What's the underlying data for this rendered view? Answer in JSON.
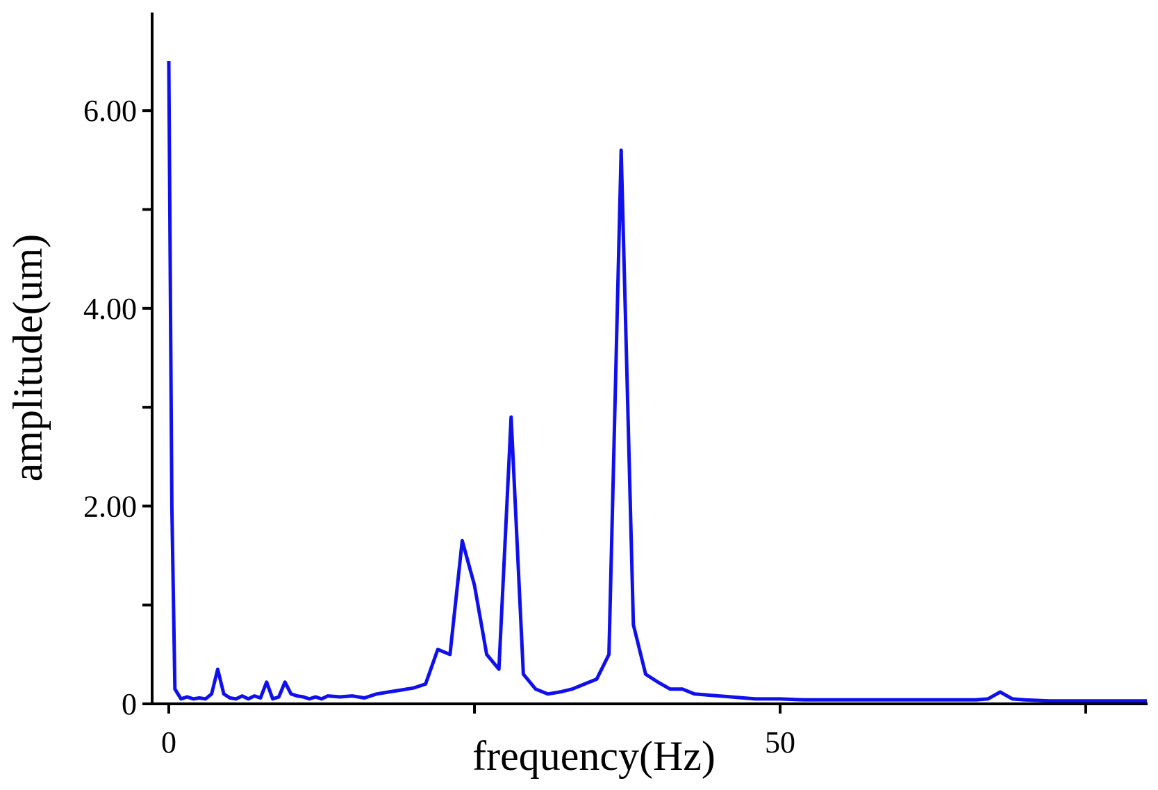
{
  "chart_data": {
    "type": "line",
    "xlabel": "frequency(Hz)",
    "ylabel": "amplitude(um)",
    "xlim": [
      -0.3,
      80.0
    ],
    "ylim": [
      0,
      7.0
    ],
    "xticks": [
      0,
      25,
      50,
      75
    ],
    "xtick_labels": [
      "0",
      "",
      "50",
      ""
    ],
    "yticks": [
      0,
      1,
      2,
      3,
      4,
      5,
      6
    ],
    "ytick_labels": [
      "0",
      "",
      "2.00",
      "",
      "4.00",
      "",
      "6.00"
    ],
    "grid": false,
    "line_color": "#1010ee",
    "series": [
      {
        "x": [
          0,
          0.25,
          0.5,
          1,
          1.5,
          2,
          2.5,
          3,
          3.5,
          4,
          4.5,
          5,
          5.5,
          6,
          6.5,
          7,
          7.5,
          8,
          8.5,
          9,
          9.5,
          10,
          10.5,
          11,
          11.5,
          12,
          12.5,
          13,
          14,
          15,
          16,
          17,
          18,
          19,
          20,
          21,
          22,
          23,
          24,
          25,
          26,
          27,
          28,
          29,
          30,
          31,
          32,
          33,
          34,
          35,
          36,
          37,
          38,
          39,
          40,
          41,
          42,
          43,
          44,
          45,
          46,
          47,
          48,
          49,
          50,
          52,
          55,
          58,
          61,
          64,
          66,
          67,
          68,
          69,
          70,
          72,
          75,
          78,
          80
        ],
        "y": [
          6.5,
          2.0,
          0.15,
          0.05,
          0.07,
          0.05,
          0.06,
          0.05,
          0.1,
          0.35,
          0.1,
          0.06,
          0.05,
          0.08,
          0.05,
          0.08,
          0.06,
          0.22,
          0.05,
          0.07,
          0.22,
          0.1,
          0.08,
          0.07,
          0.05,
          0.07,
          0.05,
          0.08,
          0.07,
          0.08,
          0.06,
          0.1,
          0.12,
          0.14,
          0.16,
          0.2,
          0.55,
          0.5,
          1.65,
          1.2,
          0.5,
          0.35,
          2.9,
          0.3,
          0.15,
          0.1,
          0.12,
          0.15,
          0.2,
          0.25,
          0.5,
          5.6,
          0.8,
          0.3,
          0.22,
          0.15,
          0.15,
          0.1,
          0.09,
          0.08,
          0.07,
          0.06,
          0.05,
          0.05,
          0.05,
          0.04,
          0.04,
          0.04,
          0.04,
          0.04,
          0.04,
          0.05,
          0.12,
          0.05,
          0.04,
          0.03,
          0.03,
          0.03,
          0.03
        ]
      }
    ]
  }
}
